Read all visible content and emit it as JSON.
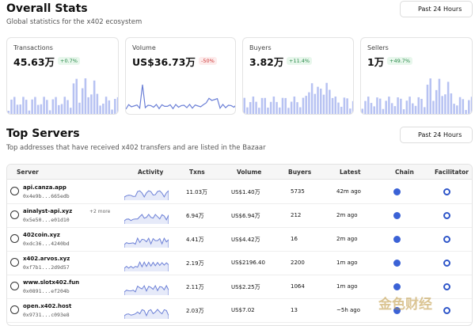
{
  "header": {
    "title": "Overall Stats",
    "subtitle": "Global statistics for the x402 ecosystem",
    "range": "Past 24 Hours"
  },
  "cards": [
    {
      "label": "Transactions",
      "value": "45.63万",
      "change": "+0.7%"
    },
    {
      "label": "Volume",
      "value": "US$36.73万",
      "change": "-50%"
    },
    {
      "label": "Buyers",
      "value": "3.82万",
      "change": "+11.4%"
    },
    {
      "label": "Sellers",
      "value": "1万",
      "change": "+49.7%"
    }
  ],
  "servers": {
    "title": "Top Servers",
    "subtitle": "Top addresses that have received x402 transfers and are listed in the Bazaar",
    "range": "Past 24 Hours",
    "columns": [
      "Server",
      "Activity",
      "Txns",
      "Volume",
      "Buyers",
      "Latest",
      "Chain",
      "Facilitator"
    ],
    "rows": [
      {
        "name": "api.canza.app",
        "more": null,
        "address": "0x4e9b...665edb",
        "txns": "11.03万",
        "volume": "US$1.40万",
        "buyers": "5735",
        "latest": "42m ago"
      },
      {
        "name": "ainalyst-api.xyz",
        "more": "+2 more",
        "address": "0x5e50...e01d10",
        "txns": "6.94万",
        "volume": "US$6.94万",
        "buyers": "212",
        "latest": "2m ago"
      },
      {
        "name": "402coin.xyz",
        "more": null,
        "address": "0xdc36...4240bd",
        "txns": "4.41万",
        "volume": "US$4.42万",
        "buyers": "16",
        "latest": "2m ago"
      },
      {
        "name": "x402.arvos.xyz",
        "more": null,
        "address": "0xf7b1...2d9d57",
        "txns": "2.19万",
        "volume": "US$2196.40",
        "buyers": "2200",
        "latest": "1m ago"
      },
      {
        "name": "www.slotx402.fun",
        "more": null,
        "address": "0x0891...ef204b",
        "txns": "2.11万",
        "volume": "US$2.25万",
        "buyers": "1064",
        "latest": "1m ago"
      },
      {
        "name": "open.x402.host",
        "more": null,
        "address": "0x9731...c093e8",
        "txns": "2.03万",
        "volume": "US$7.02",
        "buyers": "13",
        "latest": "~5h ago"
      }
    ]
  },
  "watermark": "金色财经"
}
